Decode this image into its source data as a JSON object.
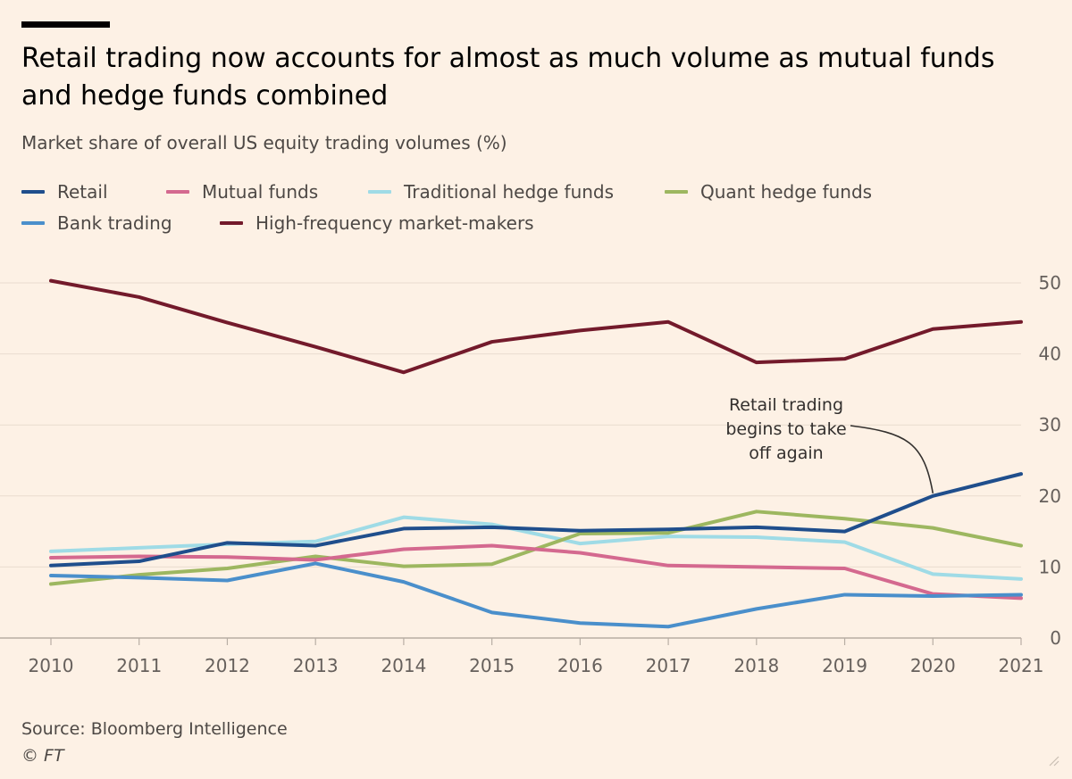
{
  "title": "Retail trading now accounts for almost as much volume as mutual funds and hedge funds combined",
  "subtitle": "Market share of overall US equity trading volumes (%)",
  "source": "Source: Bloomberg Intelligence",
  "credit": "© FT",
  "chart_data": {
    "type": "line",
    "x": [
      2010,
      2011,
      2012,
      2013,
      2014,
      2015,
      2016,
      2017,
      2018,
      2019,
      2020,
      2021
    ],
    "ylim": [
      0,
      50
    ],
    "yticks": [
      0,
      10,
      20,
      30,
      40,
      50
    ],
    "grid": true,
    "legend_position": "top-left",
    "annotation": {
      "lines": [
        "Retail trading",
        "begins to take",
        "off again"
      ],
      "target_series": "Retail",
      "target_x": 2020,
      "target_y": 20
    },
    "series": [
      {
        "name": "Retail",
        "color": "#1f4e8c",
        "values": [
          10.2,
          10.8,
          13.4,
          13.0,
          15.4,
          15.6,
          15.1,
          15.3,
          15.6,
          15.0,
          20.0,
          23.1
        ]
      },
      {
        "name": "Mutual funds",
        "color": "#d4698f",
        "values": [
          11.3,
          11.5,
          11.4,
          11.0,
          12.5,
          13.0,
          12.0,
          10.2,
          10.0,
          9.8,
          6.2,
          5.6
        ]
      },
      {
        "name": "Traditional hedge funds",
        "color": "#9fdbe6",
        "values": [
          12.2,
          12.7,
          13.2,
          13.6,
          17.0,
          16.0,
          13.3,
          14.3,
          14.2,
          13.5,
          9.0,
          8.3
        ]
      },
      {
        "name": "Quant hedge funds",
        "color": "#9db760",
        "values": [
          7.6,
          8.9,
          9.8,
          11.5,
          10.1,
          10.4,
          14.7,
          14.8,
          17.8,
          16.8,
          15.5,
          13.0
        ]
      },
      {
        "name": "Bank trading",
        "color": "#4a8fcb",
        "values": [
          8.8,
          8.5,
          8.1,
          10.5,
          7.9,
          3.6,
          2.1,
          1.6,
          4.1,
          6.1,
          5.9,
          6.1
        ]
      },
      {
        "name": "High-frequency market-makers",
        "color": "#731a2b",
        "values": [
          50.3,
          48.0,
          44.4,
          41.0,
          37.4,
          41.7,
          43.3,
          44.5,
          38.8,
          39.3,
          43.5,
          44.5
        ]
      }
    ]
  }
}
